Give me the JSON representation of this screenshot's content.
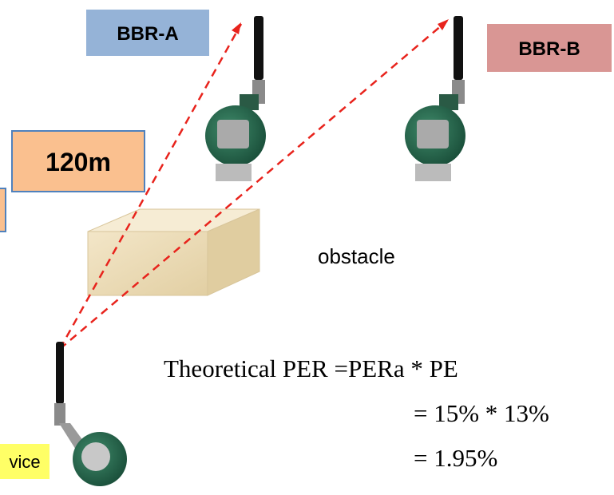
{
  "nodes": [
    {
      "label": "BBR-A"
    },
    {
      "label": "BBR-B"
    },
    {
      "label": "vice"
    }
  ],
  "distance": {
    "label": "120m"
  },
  "obstacle": {
    "label": "obstacle"
  },
  "formula": {
    "lines": [
      "Theoretical PER =PERa * PE",
      "= 15% * 13%",
      "= 1.95%"
    ]
  }
}
